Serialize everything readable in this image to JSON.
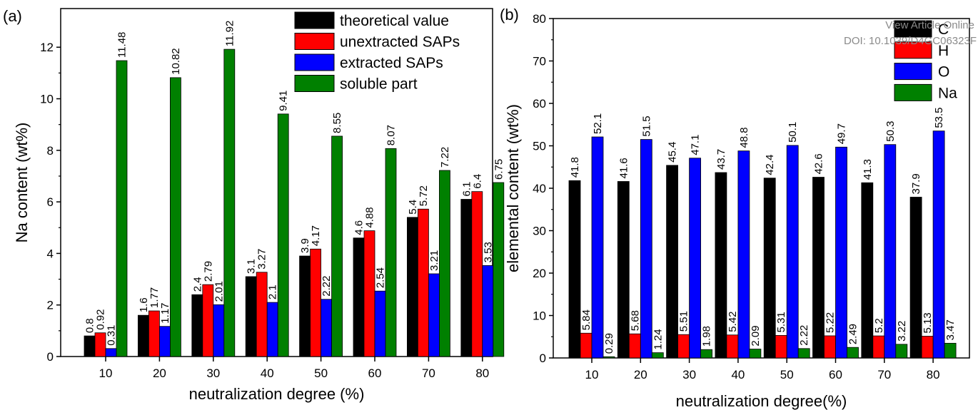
{
  "watermark": {
    "line1": "View Article Online",
    "line2": "DOI: 10.1039/D4GC06323F"
  },
  "chart_data": [
    {
      "type": "bar",
      "panel_label": "(a)",
      "xlabel": "neutralization degree (%)",
      "ylabel": "Na content (wt%)",
      "categories": [
        "10",
        "20",
        "30",
        "40",
        "50",
        "60",
        "70",
        "80"
      ],
      "ylim": [
        0,
        13.5
      ],
      "yticks": [
        "0",
        "2",
        "4",
        "6",
        "8",
        "10",
        "12"
      ],
      "legend_position": "top-right",
      "series": [
        {
          "name": "theoretical value",
          "color": "#000000",
          "values": [
            0.8,
            1.6,
            2.4,
            3.1,
            3.9,
            4.6,
            5.4,
            6.1
          ],
          "labels": [
            "0.8",
            "1.6",
            "2.4",
            "3.1",
            "3.9",
            "4.6",
            "5.4",
            "6.1"
          ]
        },
        {
          "name": "unextracted SAPs",
          "color": "#ff0000",
          "values": [
            0.92,
            1.77,
            2.79,
            3.27,
            4.17,
            4.88,
            5.72,
            6.4
          ],
          "labels": [
            "0.92",
            "1.77",
            "2.79",
            "3.27",
            "4.17",
            "4.88",
            "5.72",
            "6.4"
          ]
        },
        {
          "name": "extracted SAPs",
          "color": "#0000ff",
          "values": [
            0.31,
            1.17,
            2.01,
            2.1,
            2.22,
            2.54,
            3.21,
            3.53
          ],
          "labels": [
            "0.31",
            "1.17",
            "2.01",
            "2.1",
            "2.22",
            "2.54",
            "3.21",
            "3.53"
          ]
        },
        {
          "name": "soluble part",
          "color": "#008000",
          "values": [
            11.48,
            10.82,
            11.92,
            9.41,
            8.55,
            8.07,
            7.22,
            6.75
          ],
          "labels": [
            "11.48",
            "10.82",
            "11.92",
            "9.41",
            "8.55",
            "8.07",
            "7.22",
            "6.75"
          ]
        }
      ]
    },
    {
      "type": "bar",
      "panel_label": "(b)",
      "xlabel": "neutralization degree(%)",
      "ylabel": "elemental content (wt%)",
      "categories": [
        "10",
        "20",
        "30",
        "40",
        "50",
        "60",
        "70",
        "80"
      ],
      "ylim": [
        0,
        80
      ],
      "yticks": [
        "0",
        "10",
        "20",
        "30",
        "40",
        "50",
        "60",
        "70",
        "80"
      ],
      "legend_position": "top-right",
      "series": [
        {
          "name": "C",
          "color": "#000000",
          "values": [
            41.8,
            41.6,
            45.4,
            43.7,
            42.4,
            42.6,
            41.3,
            37.9
          ],
          "labels": [
            "41.8",
            "41.6",
            "45.4",
            "43.7",
            "42.4",
            "42.6",
            "41.3",
            "37.9"
          ]
        },
        {
          "name": "H",
          "color": "#ff0000",
          "values": [
            5.84,
            5.68,
            5.51,
            5.42,
            5.31,
            5.22,
            5.2,
            5.13
          ],
          "labels": [
            "5.84",
            "5.68",
            "5.51",
            "5.42",
            "5.31",
            "5.22",
            "5.2",
            "5.13"
          ]
        },
        {
          "name": "O",
          "color": "#0000ff",
          "values": [
            52.1,
            51.5,
            47.1,
            48.8,
            50.1,
            49.7,
            50.3,
            53.5
          ],
          "labels": [
            "52.1",
            "51.5",
            "47.1",
            "48.8",
            "50.1",
            "49.7",
            "50.3",
            "53.5"
          ]
        },
        {
          "name": "Na",
          "color": "#008000",
          "values": [
            0.29,
            1.24,
            1.98,
            2.09,
            2.22,
            2.49,
            3.22,
            3.47
          ],
          "labels": [
            "0.29",
            "1.24",
            "1.98",
            "2.09",
            "2.22",
            "2.49",
            "3.22",
            "3.47"
          ]
        }
      ]
    }
  ]
}
